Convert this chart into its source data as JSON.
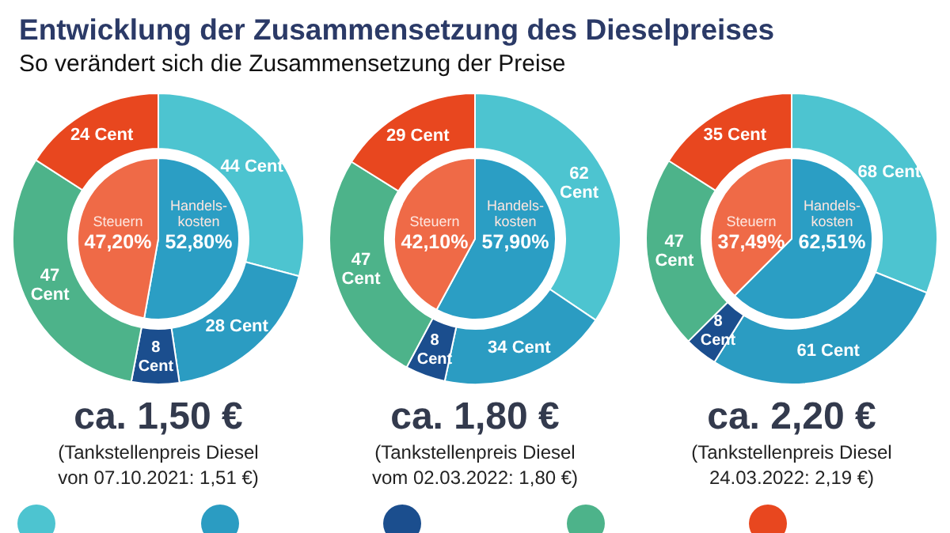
{
  "chart_data": [
    {
      "type": "donut",
      "title": "Entwicklung der Zusammensetzung des Dieselpreises",
      "subtitle": "So verändert sich die Zusammensetzung der Preise",
      "categories": [
        null,
        null,
        null,
        null,
        null
      ],
      "values": [
        44,
        28,
        8,
        47,
        24
      ],
      "colors": [
        "#4dc4d0",
        "#2b9cc2",
        "#1b4e8e",
        "#4db38a",
        "#e8471f"
      ],
      "value_labels": [
        "44 Cent",
        "28 Cent",
        "8 Cent",
        "47 Cent",
        "24 Cent"
      ],
      "annotations": [
        "ca. 1,50 €",
        "(Tankstellenpreis Diesel von 07.10.2021: 1,51 €)"
      ]
    },
    {
      "type": "pie",
      "categories": [
        "Handels-\nkosten",
        "Steuern"
      ],
      "values": [
        52.8,
        47.2
      ],
      "colors": [
        "#2b9ec4",
        "#ef6a47"
      ],
      "value_labels": [
        "52,80%",
        "47,20%"
      ]
    },
    {
      "type": "donut",
      "categories": [
        null,
        null,
        null,
        null,
        null
      ],
      "values": [
        62,
        34,
        8,
        47,
        29
      ],
      "colors": [
        "#4dc4d0",
        "#2b9cc2",
        "#1b4e8e",
        "#4db38a",
        "#e8471f"
      ],
      "value_labels": [
        "62 Cent",
        "34 Cent",
        "8 Cent",
        "47 Cent",
        "29 Cent"
      ],
      "annotations": [
        "ca. 1,80 €",
        "(Tankstellenpreis Diesel vom 02.03.2022: 1,80 €)"
      ]
    },
    {
      "type": "pie",
      "categories": [
        "Handels-\nkosten",
        "Steuern"
      ],
      "values": [
        57.9,
        42.1
      ],
      "colors": [
        "#2b9ec4",
        "#ef6a47"
      ],
      "value_labels": [
        "57,90%",
        "42,10%"
      ]
    },
    {
      "type": "donut",
      "categories": [
        null,
        null,
        null,
        null,
        null
      ],
      "values": [
        68,
        61,
        8,
        47,
        35
      ],
      "colors": [
        "#4dc4d0",
        "#2b9cc2",
        "#1b4e8e",
        "#4db38a",
        "#e8471f"
      ],
      "value_labels": [
        "68 Cent",
        "61 Cent",
        "8 Cent",
        "47 Cent",
        "35 Cent"
      ],
      "annotations": [
        "ca. 2,20 €",
        "(Tankstellenpreis Diesel 24.03.2022: 2,19 €)"
      ]
    },
    {
      "type": "pie",
      "categories": [
        "Handels-\nkosten",
        "Steuern"
      ],
      "values": [
        62.51,
        37.49
      ],
      "colors": [
        "#2b9ec4",
        "#ef6a47"
      ],
      "value_labels": [
        "62,51%",
        "37,49%"
      ]
    }
  ]
}
